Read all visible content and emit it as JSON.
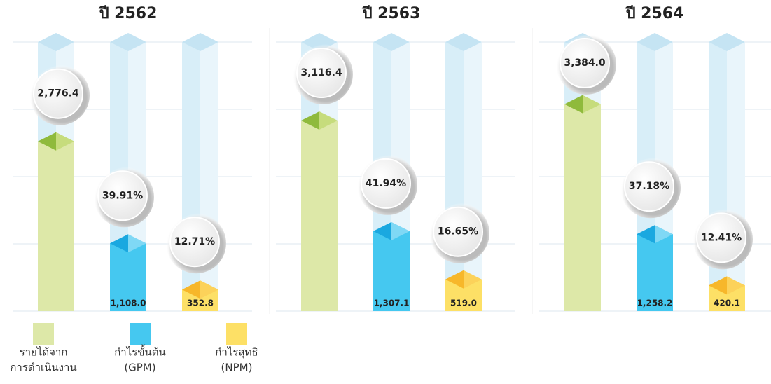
{
  "chart_data": [
    {
      "type": "bar",
      "title": "ปี 2562",
      "values": [
        2776.4,
        1108.0,
        352.8
      ],
      "value_labels": [
        "2,776.4",
        "1,108.0",
        "352.8"
      ],
      "margins": [
        39.91,
        12.71
      ],
      "margin_labels": [
        "39.91%",
        "12.71%"
      ],
      "ylim": [
        0,
        4400
      ],
      "yticks": [
        0,
        1100,
        2200,
        3300,
        4400
      ],
      "grid": true
    },
    {
      "type": "bar",
      "title": "ปี 2563",
      "values": [
        3116.4,
        1307.1,
        519.0
      ],
      "value_labels": [
        "3,116.4",
        "1,307.1",
        "519.0"
      ],
      "margins": [
        41.94,
        16.65
      ],
      "margin_labels": [
        "41.94%",
        "16.65%"
      ],
      "ylim": [
        0,
        4400
      ],
      "yticks": [
        0,
        1100,
        2200,
        3300,
        4400
      ],
      "grid": true
    },
    {
      "type": "bar",
      "title": "ปี 2564",
      "values": [
        3384.0,
        1258.2,
        420.1
      ],
      "value_labels": [
        "3,384.0",
        "1,258.2",
        "420.1"
      ],
      "margins": [
        37.18,
        12.41
      ],
      "margin_labels": [
        "37.18%",
        "12.41%"
      ],
      "ylim": [
        0,
        4400
      ],
      "yticks": [
        0,
        1100,
        2200,
        3300,
        4400
      ],
      "grid": true
    }
  ],
  "legend": [
    {
      "lines": [
        "รายได้จาก",
        "การดำเนินงาน"
      ],
      "color": "#dde8a8"
    },
    {
      "lines": [
        "กำไรขั้นต้น",
        "(GPM)"
      ],
      "color": "#45c8f0"
    },
    {
      "lines": [
        "กำไรสุทธิ",
        "(NPM)"
      ],
      "color": "#fde066"
    }
  ]
}
